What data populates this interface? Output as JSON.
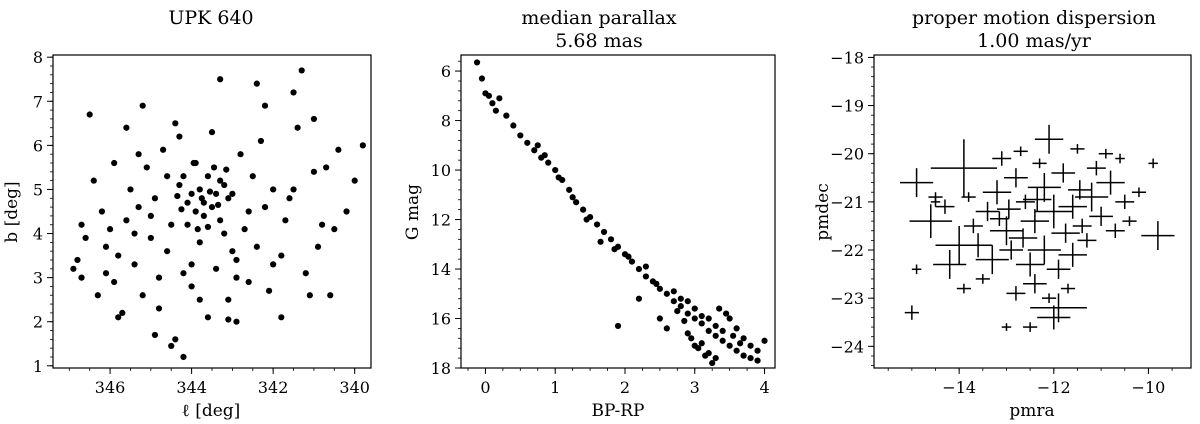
{
  "figure": {
    "background": "#ffffff",
    "marker_color": "#000000"
  },
  "chart_data": [
    {
      "type": "scatter",
      "title": [
        "UPK 640"
      ],
      "xlabel": "ℓ [deg]",
      "ylabel": "b [deg]",
      "xlim": [
        347.4,
        339.6
      ],
      "ylim": [
        0.95,
        8.05
      ],
      "xticks": [
        346,
        344,
        342,
        340
      ],
      "xtick_labels": [
        "346",
        "344",
        "342",
        "340"
      ],
      "yticks": [
        1,
        2,
        3,
        4,
        5,
        6,
        7,
        8
      ],
      "ytick_labels": [
        "1",
        "2",
        "3",
        "4",
        "5",
        "6",
        "7",
        "8"
      ],
      "grid": false,
      "points": [
        [
          346.8,
          3.4
        ],
        [
          346.9,
          3.2
        ],
        [
          346.6,
          3.9
        ],
        [
          346.7,
          3.0
        ],
        [
          346.2,
          4.5
        ],
        [
          346.1,
          3.7
        ],
        [
          345.9,
          2.9
        ],
        [
          346.0,
          4.1
        ],
        [
          345.8,
          3.5
        ],
        [
          345.7,
          2.2
        ],
        [
          345.6,
          4.3
        ],
        [
          345.5,
          5.0
        ],
        [
          345.4,
          3.3
        ],
        [
          345.3,
          4.6
        ],
        [
          345.2,
          2.6
        ],
        [
          345.1,
          5.5
        ],
        [
          345.0,
          3.9
        ],
        [
          344.9,
          4.8
        ],
        [
          344.8,
          2.3
        ],
        [
          344.7,
          5.9
        ],
        [
          344.6,
          3.6
        ],
        [
          344.5,
          4.2
        ],
        [
          344.4,
          1.6
        ],
        [
          344.3,
          5.1
        ],
        [
          344.2,
          3.1
        ],
        [
          344.1,
          4.7
        ],
        [
          344.0,
          2.8
        ],
        [
          343.9,
          5.6
        ],
        [
          343.8,
          3.8
        ],
        [
          343.7,
          4.4
        ],
        [
          343.6,
          2.1
        ],
        [
          343.5,
          6.3
        ],
        [
          343.4,
          3.2
        ],
        [
          343.3,
          5.2
        ],
        [
          343.2,
          4.0
        ],
        [
          343.1,
          2.5
        ],
        [
          343.0,
          4.9
        ],
        [
          342.9,
          3.4
        ],
        [
          342.8,
          5.8
        ],
        [
          342.7,
          4.1
        ],
        [
          342.6,
          2.9
        ],
        [
          342.5,
          5.3
        ],
        [
          342.4,
          3.7
        ],
        [
          342.3,
          6.1
        ],
        [
          342.2,
          4.6
        ],
        [
          342.1,
          2.7
        ],
        [
          342.0,
          5.0
        ],
        [
          341.8,
          3.5
        ],
        [
          341.6,
          4.8
        ],
        [
          341.4,
          6.4
        ],
        [
          341.2,
          3.1
        ],
        [
          341.0,
          5.4
        ],
        [
          340.8,
          4.2
        ],
        [
          340.6,
          2.6
        ],
        [
          340.4,
          5.9
        ],
        [
          340.2,
          4.5
        ],
        [
          340.0,
          5.2
        ],
        [
          339.8,
          6.0
        ],
        [
          344.0,
          4.9
        ],
        [
          343.9,
          4.5
        ],
        [
          343.8,
          5.0
        ],
        [
          343.7,
          4.7
        ],
        [
          343.6,
          5.3
        ],
        [
          343.5,
          4.6
        ],
        [
          343.4,
          4.9
        ],
        [
          343.3,
          4.3
        ],
        [
          343.2,
          5.1
        ],
        [
          343.1,
          4.8
        ],
        [
          344.1,
          4.2
        ],
        [
          344.2,
          5.3
        ],
        [
          343.85,
          4.1
        ],
        [
          343.6,
          4.15
        ],
        [
          343.45,
          5.5
        ],
        [
          343.95,
          5.6
        ],
        [
          343.75,
          4.8
        ],
        [
          343.55,
          4.95
        ],
        [
          343.35,
          4.65
        ],
        [
          344.25,
          4.55
        ],
        [
          344.35,
          4.85
        ],
        [
          343.15,
          5.45
        ],
        [
          346.5,
          6.7
        ],
        [
          345.2,
          6.9
        ],
        [
          344.4,
          6.5
        ],
        [
          343.3,
          7.5
        ],
        [
          342.4,
          7.4
        ],
        [
          341.3,
          7.7
        ],
        [
          341.5,
          7.2
        ],
        [
          342.2,
          6.9
        ],
        [
          344.3,
          6.2
        ],
        [
          345.6,
          6.4
        ],
        [
          341.0,
          6.6
        ],
        [
          344.2,
          1.2
        ],
        [
          344.5,
          1.45
        ],
        [
          344.9,
          1.7
        ],
        [
          343.1,
          2.05
        ],
        [
          342.9,
          2.0
        ],
        [
          341.8,
          2.1
        ],
        [
          345.8,
          2.1
        ],
        [
          341.1,
          2.6
        ],
        [
          346.3,
          2.6
        ],
        [
          340.9,
          3.7
        ],
        [
          340.5,
          4.1
        ],
        [
          346.4,
          5.2
        ],
        [
          345.9,
          5.6
        ],
        [
          346.7,
          4.2
        ],
        [
          345.0,
          4.4
        ],
        [
          344.6,
          5.3
        ],
        [
          342.0,
          3.3
        ],
        [
          341.7,
          4.3
        ],
        [
          342.6,
          4.5
        ],
        [
          345.4,
          4.0
        ],
        [
          344.8,
          3.0
        ],
        [
          343.8,
          2.5
        ],
        [
          342.9,
          3.0
        ],
        [
          341.5,
          5.0
        ],
        [
          340.7,
          5.5
        ],
        [
          345.3,
          5.8
        ],
        [
          346.1,
          3.1
        ],
        [
          344.0,
          3.3
        ],
        [
          343.0,
          3.6
        ]
      ]
    },
    {
      "type": "scatter",
      "title": [
        "median parallax",
        "5.68 mas"
      ],
      "xlabel": "BP-RP",
      "ylabel": "G mag",
      "xlim": [
        -0.35,
        4.15
      ],
      "ylim": [
        18.0,
        5.35
      ],
      "xticks": [
        0,
        1,
        2,
        3,
        4
      ],
      "xtick_labels": [
        "0",
        "1",
        "2",
        "3",
        "4"
      ],
      "yticks": [
        6,
        8,
        10,
        12,
        14,
        16,
        18
      ],
      "ytick_labels": [
        "6",
        "8",
        "10",
        "12",
        "14",
        "16",
        "18"
      ],
      "grid": false,
      "points": [
        [
          -0.12,
          5.65
        ],
        [
          -0.05,
          6.3
        ],
        [
          0.0,
          6.9
        ],
        [
          0.05,
          7.0
        ],
        [
          0.1,
          7.3
        ],
        [
          0.15,
          7.6
        ],
        [
          0.2,
          7.1
        ],
        [
          0.3,
          7.8
        ],
        [
          0.4,
          8.2
        ],
        [
          0.5,
          8.6
        ],
        [
          0.6,
          8.9
        ],
        [
          0.7,
          9.2
        ],
        [
          0.8,
          9.5
        ],
        [
          0.9,
          9.7
        ],
        [
          1.0,
          10.0
        ],
        [
          1.1,
          10.4
        ],
        [
          1.2,
          10.8
        ],
        [
          1.3,
          11.3
        ],
        [
          1.4,
          11.6
        ],
        [
          1.5,
          11.9
        ],
        [
          1.6,
          12.2
        ],
        [
          1.7,
          12.5
        ],
        [
          1.8,
          12.8
        ],
        [
          1.9,
          13.1
        ],
        [
          2.0,
          13.4
        ],
        [
          2.1,
          13.7
        ],
        [
          2.2,
          14.0
        ],
        [
          2.3,
          14.3
        ],
        [
          2.4,
          14.5
        ],
        [
          2.5,
          14.8
        ],
        [
          2.6,
          15.0
        ],
        [
          2.7,
          15.3
        ],
        [
          2.8,
          15.5
        ],
        [
          2.9,
          15.8
        ],
        [
          3.0,
          16.0
        ],
        [
          3.1,
          16.2
        ],
        [
          3.2,
          16.5
        ],
        [
          3.3,
          16.7
        ],
        [
          3.4,
          16.9
        ],
        [
          3.5,
          17.1
        ],
        [
          3.6,
          17.3
        ],
        [
          3.7,
          17.5
        ],
        [
          3.8,
          17.6
        ],
        [
          3.9,
          17.7
        ],
        [
          2.7,
          14.9
        ],
        [
          2.8,
          15.2
        ],
        [
          2.9,
          15.3
        ],
        [
          3.0,
          15.6
        ],
        [
          3.1,
          15.9
        ],
        [
          3.2,
          16.0
        ],
        [
          3.3,
          16.3
        ],
        [
          3.4,
          16.5
        ],
        [
          2.95,
          16.8
        ],
        [
          3.05,
          17.2
        ],
        [
          3.15,
          17.5
        ],
        [
          3.25,
          17.8
        ],
        [
          3.5,
          16.0
        ],
        [
          3.6,
          16.4
        ],
        [
          3.7,
          16.8
        ],
        [
          3.8,
          17.1
        ],
        [
          3.9,
          17.3
        ],
        [
          4.0,
          16.9
        ],
        [
          2.2,
          15.2
        ],
        [
          2.5,
          16.0
        ],
        [
          1.9,
          16.3
        ],
        [
          2.6,
          16.4
        ],
        [
          3.35,
          15.6
        ],
        [
          3.45,
          15.8
        ],
        [
          3.55,
          16.7
        ],
        [
          3.65,
          17.0
        ],
        [
          2.75,
          15.7
        ],
        [
          2.85,
          16.1
        ],
        [
          1.65,
          12.9
        ],
        [
          1.85,
          13.2
        ],
        [
          1.45,
          12.0
        ],
        [
          1.05,
          10.3
        ],
        [
          1.25,
          11.1
        ],
        [
          0.75,
          9.0
        ],
        [
          0.85,
          9.4
        ],
        [
          2.3,
          13.9
        ],
        [
          2.45,
          14.6
        ],
        [
          2.05,
          13.5
        ],
        [
          3.1,
          17.0
        ],
        [
          3.2,
          17.4
        ],
        [
          3.3,
          17.6
        ],
        [
          3.0,
          17.1
        ],
        [
          2.9,
          16.6
        ]
      ]
    },
    {
      "type": "scatter",
      "title": [
        "proper motion dispersion",
        "1.00 mas/yr"
      ],
      "xlabel": "pmra",
      "ylabel": "pmdec",
      "xlim": [
        -15.8,
        -9.1
      ],
      "ylim": [
        -24.45,
        -17.95
      ],
      "xticks": [
        -14,
        -12,
        -10
      ],
      "xtick_labels": [
        "−14",
        "−12",
        "−10"
      ],
      "yticks": [
        -18,
        -19,
        -20,
        -21,
        -22,
        -23,
        -24
      ],
      "ytick_labels": [
        "−18",
        "−19",
        "−20",
        "−21",
        "−22",
        "−23",
        "−24"
      ],
      "grid": false,
      "points_with_errors": [
        [
          -14.9,
          -20.6,
          0.35,
          0.3
        ],
        [
          -14.6,
          -21.4,
          0.45,
          0.35
        ],
        [
          -14.3,
          -21.1,
          0.2,
          0.15
        ],
        [
          -13.9,
          -20.3,
          0.7,
          0.6
        ],
        [
          -13.4,
          -21.2,
          0.25,
          0.2
        ],
        [
          -13.2,
          -20.8,
          0.3,
          0.25
        ],
        [
          -13.0,
          -21.6,
          0.35,
          0.3
        ],
        [
          -12.8,
          -20.5,
          0.25,
          0.2
        ],
        [
          -12.6,
          -21.0,
          0.2,
          0.15
        ],
        [
          -12.4,
          -21.4,
          0.3,
          0.25
        ],
        [
          -12.2,
          -20.7,
          0.35,
          0.3
        ],
        [
          -12.0,
          -21.2,
          0.4,
          0.35
        ],
        [
          -11.8,
          -20.4,
          0.25,
          0.2
        ],
        [
          -11.6,
          -21.1,
          0.3,
          0.25
        ],
        [
          -11.4,
          -21.5,
          0.2,
          0.15
        ],
        [
          -11.2,
          -20.9,
          0.35,
          0.3
        ],
        [
          -11.0,
          -21.3,
          0.25,
          0.2
        ],
        [
          -10.8,
          -20.6,
          0.3,
          0.25
        ],
        [
          -10.5,
          -21.0,
          0.2,
          0.15
        ],
        [
          -10.2,
          -20.8,
          0.15,
          0.1
        ],
        [
          -9.8,
          -21.7,
          0.35,
          0.3
        ],
        [
          -12.1,
          -19.7,
          0.3,
          0.3
        ],
        [
          -11.5,
          -19.9,
          0.15,
          0.1
        ],
        [
          -10.9,
          -20.0,
          0.15,
          0.1
        ],
        [
          -10.6,
          -20.1,
          0.1,
          0.1
        ],
        [
          -9.9,
          -20.2,
          0.1,
          0.1
        ],
        [
          -14.0,
          -21.9,
          0.5,
          0.4
        ],
        [
          -14.2,
          -22.3,
          0.35,
          0.3
        ],
        [
          -13.6,
          -21.9,
          0.3,
          0.25
        ],
        [
          -13.3,
          -22.2,
          0.35,
          0.3
        ],
        [
          -12.9,
          -22.0,
          0.25,
          0.2
        ],
        [
          -12.5,
          -22.3,
          0.3,
          0.25
        ],
        [
          -12.2,
          -22.0,
          0.35,
          0.3
        ],
        [
          -11.9,
          -22.4,
          0.25,
          0.2
        ],
        [
          -11.6,
          -22.1,
          0.3,
          0.25
        ],
        [
          -11.3,
          -21.8,
          0.2,
          0.15
        ],
        [
          -13.9,
          -22.8,
          0.15,
          0.1
        ],
        [
          -13.5,
          -22.6,
          0.15,
          0.1
        ],
        [
          -12.8,
          -22.9,
          0.2,
          0.15
        ],
        [
          -12.4,
          -22.7,
          0.25,
          0.2
        ],
        [
          -11.9,
          -23.2,
          0.6,
          0.3
        ],
        [
          -12.1,
          -23.0,
          0.15,
          0.1
        ],
        [
          -11.7,
          -22.8,
          0.15,
          0.1
        ],
        [
          -15.0,
          -23.3,
          0.15,
          0.15
        ],
        [
          -14.9,
          -22.4,
          0.1,
          0.1
        ],
        [
          -12.5,
          -23.6,
          0.15,
          0.1
        ],
        [
          -13.0,
          -23.6,
          0.1,
          0.08
        ],
        [
          -12.0,
          -23.4,
          0.35,
          0.25
        ],
        [
          -13.8,
          -20.9,
          0.15,
          0.1
        ],
        [
          -13.1,
          -20.1,
          0.2,
          0.15
        ],
        [
          -12.7,
          -19.95,
          0.15,
          0.1
        ],
        [
          -12.3,
          -20.2,
          0.15,
          0.1
        ],
        [
          -11.1,
          -20.3,
          0.2,
          0.15
        ],
        [
          -10.7,
          -21.6,
          0.2,
          0.15
        ],
        [
          -10.4,
          -21.4,
          0.15,
          0.1
        ],
        [
          -14.5,
          -20.9,
          0.15,
          0.1
        ],
        [
          -14.5,
          -21.0,
          0.1,
          0.1
        ],
        [
          -13.7,
          -21.5,
          0.2,
          0.15
        ],
        [
          -12.95,
          -21.15,
          0.25,
          0.2
        ],
        [
          -12.35,
          -20.95,
          0.3,
          0.25
        ],
        [
          -11.75,
          -21.65,
          0.3,
          0.2
        ],
        [
          -11.45,
          -20.75,
          0.25,
          0.2
        ],
        [
          -12.65,
          -21.75,
          0.3,
          0.2
        ],
        [
          -13.15,
          -21.35,
          0.2,
          0.15
        ]
      ]
    }
  ]
}
